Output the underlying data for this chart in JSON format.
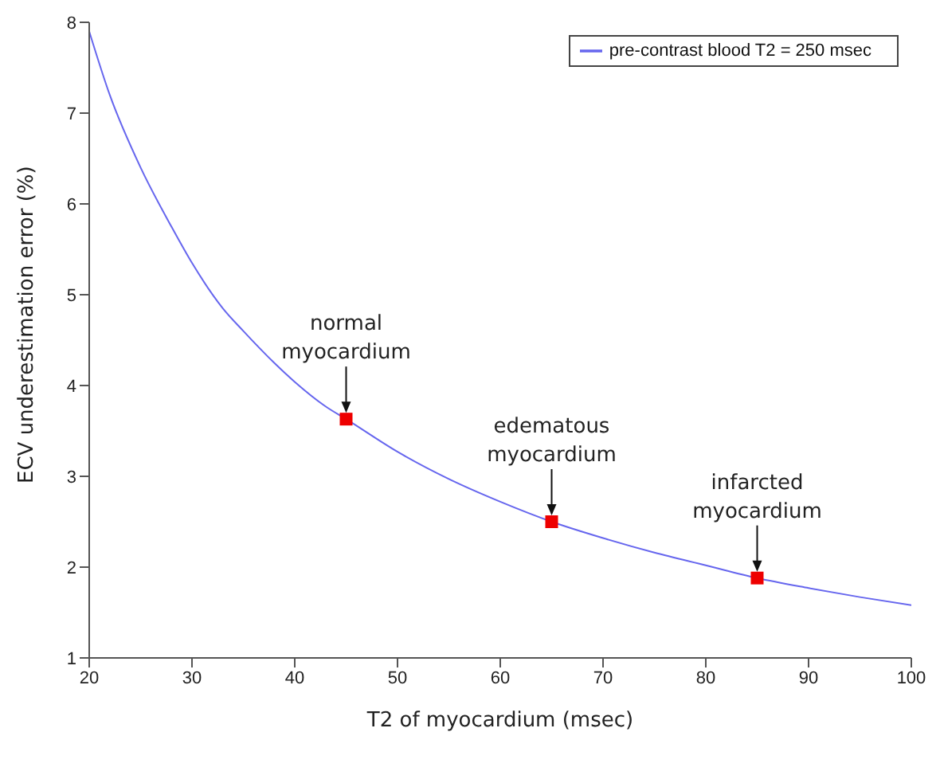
{
  "chart_data": {
    "type": "line",
    "xlabel": "T2 of myocardium (msec)",
    "ylabel": "ECV underestimation error (%)",
    "xlim": [
      20,
      100
    ],
    "ylim": [
      1,
      8
    ],
    "xticks": [
      20,
      30,
      40,
      50,
      60,
      70,
      80,
      90,
      100
    ],
    "yticks": [
      1,
      2,
      3,
      4,
      5,
      6,
      7,
      8
    ],
    "grid": false,
    "legend": "top right",
    "series": [
      {
        "name": "pre-contrast blood T2 = 250 msec",
        "type": "line",
        "color": "#6666ee",
        "marker": "none",
        "x": [
          20,
          22,
          25,
          28,
          30,
          33,
          35,
          38,
          40,
          43,
          45,
          50,
          55,
          60,
          65,
          70,
          75,
          80,
          85,
          90,
          95,
          100
        ],
        "values": [
          7.9,
          7.2,
          6.4,
          5.75,
          5.35,
          4.85,
          4.6,
          4.25,
          4.04,
          3.77,
          3.63,
          3.27,
          2.97,
          2.72,
          2.5,
          2.32,
          2.16,
          2.02,
          1.88,
          1.77,
          1.67,
          1.58
        ]
      },
      {
        "type": "scatter",
        "color": "#ee0000",
        "marker": "square",
        "x": [
          45,
          65,
          85
        ],
        "values": [
          3.63,
          2.5,
          1.88
        ]
      }
    ],
    "annotations": [
      {
        "text": "normal myocardium",
        "x": 45,
        "y": 3.63
      },
      {
        "text": "edematous myocardium",
        "x": 65,
        "y": 2.5
      },
      {
        "text": "infarcted myocardium",
        "x": 85,
        "y": 1.88
      }
    ]
  }
}
